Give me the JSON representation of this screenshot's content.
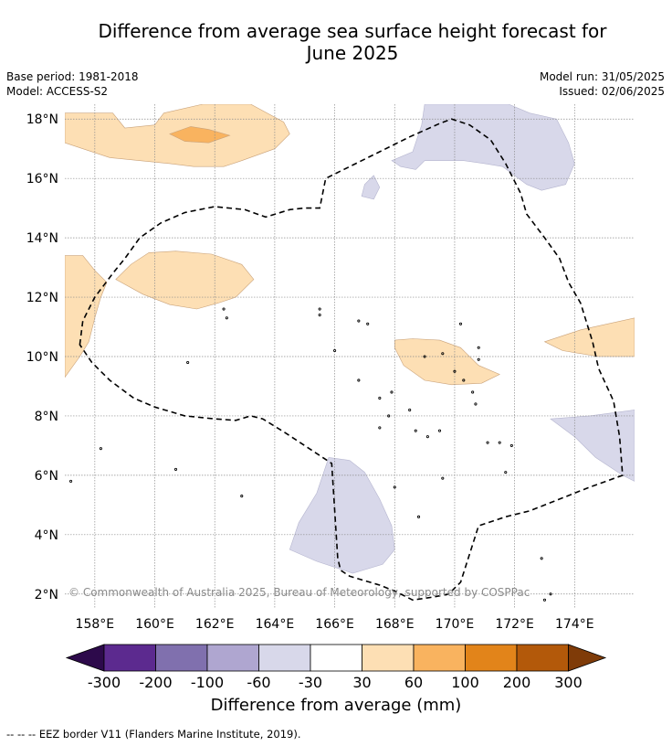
{
  "title_line1": "Difference from average sea surface height forecast for",
  "title_line2": "June 2025",
  "meta_left": {
    "base_period": "Base period: 1981-2018",
    "model": "Model: ACCESS-S2"
  },
  "meta_right": {
    "model_run": "Model run: 31/05/2025",
    "issued": "Issued: 02/06/2025"
  },
  "map": {
    "lon_range": [
      157,
      176
    ],
    "lat_range": [
      1.5,
      18.5
    ],
    "lat_ticks": [
      {
        "value": 18,
        "label": "18°N"
      },
      {
        "value": 16,
        "label": "16°N"
      },
      {
        "value": 14,
        "label": "14°N"
      },
      {
        "value": 12,
        "label": "12°N"
      },
      {
        "value": 10,
        "label": "10°N"
      },
      {
        "value": 8,
        "label": "8°N"
      },
      {
        "value": 6,
        "label": "6°N"
      },
      {
        "value": 4,
        "label": "4°N"
      },
      {
        "value": 2,
        "label": "2°N"
      }
    ],
    "lon_ticks": [
      {
        "value": 158,
        "label": "158°E"
      },
      {
        "value": 160,
        "label": "160°E"
      },
      {
        "value": 162,
        "label": "162°E"
      },
      {
        "value": 164,
        "label": "164°E"
      },
      {
        "value": 166,
        "label": "166°E"
      },
      {
        "value": 168,
        "label": "168°E"
      },
      {
        "value": 170,
        "label": "170°E"
      },
      {
        "value": 172,
        "label": "172°E"
      },
      {
        "value": 174,
        "label": "174°E"
      }
    ],
    "gridlines": true,
    "eez_border": [
      [
        157.5,
        10.4
      ],
      [
        157.6,
        11.2
      ],
      [
        158.0,
        12.0
      ],
      [
        158.6,
        12.8
      ],
      [
        159.0,
        13.3
      ],
      [
        159.5,
        14.0
      ],
      [
        160.2,
        14.5
      ],
      [
        161.0,
        14.85
      ],
      [
        162.0,
        15.05
      ],
      [
        163.0,
        14.95
      ],
      [
        163.7,
        14.7
      ],
      [
        164.5,
        14.95
      ],
      [
        165.0,
        15.0
      ],
      [
        165.5,
        15.0
      ],
      [
        165.7,
        16.0
      ],
      [
        166.5,
        16.4
      ],
      [
        167.5,
        16.9
      ],
      [
        168.5,
        17.4
      ],
      [
        169.5,
        17.85
      ],
      [
        169.9,
        18.0
      ],
      [
        170.5,
        17.8
      ],
      [
        171.2,
        17.3
      ],
      [
        171.7,
        16.5
      ],
      [
        172.2,
        15.5
      ],
      [
        172.4,
        14.8
      ],
      [
        173.0,
        14.0
      ],
      [
        173.5,
        13.3
      ],
      [
        173.8,
        12.5
      ],
      [
        174.2,
        11.8
      ],
      [
        174.6,
        10.5
      ],
      [
        174.8,
        9.6
      ],
      [
        175.3,
        8.5
      ],
      [
        175.5,
        7.3
      ],
      [
        175.6,
        6.0
      ],
      [
        174.5,
        5.6
      ],
      [
        173.5,
        5.2
      ],
      [
        172.5,
        4.8
      ],
      [
        171.7,
        4.6
      ],
      [
        170.8,
        4.3
      ],
      [
        170.2,
        2.4
      ],
      [
        169.8,
        2.0
      ],
      [
        169.3,
        1.9
      ],
      [
        168.6,
        1.8
      ],
      [
        168.0,
        2.1
      ],
      [
        167.5,
        2.3
      ],
      [
        166.5,
        2.6
      ],
      [
        166.2,
        2.8
      ],
      [
        166.1,
        3.2
      ],
      [
        165.9,
        6.4
      ],
      [
        165.3,
        6.8
      ],
      [
        164.4,
        7.4
      ],
      [
        163.6,
        7.9
      ],
      [
        163.2,
        8.0
      ],
      [
        162.7,
        7.85
      ],
      [
        162.0,
        7.9
      ],
      [
        161.0,
        8.0
      ],
      [
        160.0,
        8.3
      ],
      [
        159.3,
        8.6
      ],
      [
        158.5,
        9.2
      ],
      [
        157.9,
        9.8
      ],
      [
        157.5,
        10.4
      ]
    ],
    "islands": [
      [
        158.2,
        6.9
      ],
      [
        157.2,
        5.8
      ],
      [
        160.7,
        6.2
      ],
      [
        162.9,
        5.3
      ],
      [
        167.1,
        11.1
      ],
      [
        166.0,
        10.2
      ],
      [
        166.8,
        9.2
      ],
      [
        167.5,
        8.6
      ],
      [
        167.8,
        8.0
      ],
      [
        167.5,
        7.6
      ],
      [
        168.5,
        8.2
      ],
      [
        168.7,
        7.5
      ],
      [
        169.1,
        7.3
      ],
      [
        169.5,
        7.5
      ],
      [
        169.6,
        5.9
      ],
      [
        168.8,
        4.6
      ],
      [
        170.3,
        9.2
      ],
      [
        170.6,
        8.8
      ],
      [
        170.7,
        8.4
      ],
      [
        171.1,
        7.1
      ],
      [
        171.5,
        7.1
      ],
      [
        171.9,
        7.0
      ],
      [
        171.7,
        6.1
      ],
      [
        172.9,
        3.2
      ],
      [
        173.2,
        2.0
      ],
      [
        173.0,
        1.8
      ],
      [
        161.1,
        9.8
      ],
      [
        169.0,
        10.0
      ],
      [
        169.6,
        10.1
      ],
      [
        170.0,
        9.5
      ],
      [
        168.0,
        5.6
      ],
      [
        162.3,
        11.6
      ],
      [
        162.4,
        11.3
      ],
      [
        165.5,
        11.6
      ],
      [
        165.5,
        11.4
      ],
      [
        166.8,
        11.2
      ],
      [
        170.8,
        10.3
      ],
      [
        170.8,
        9.9
      ],
      [
        167.9,
        8.8
      ],
      [
        170.2,
        11.1
      ]
    ]
  },
  "anomaly_regions": [
    {
      "category": "30 to 60",
      "points": [
        [
          157,
          18.2
        ],
        [
          158.6,
          18.2
        ],
        [
          159.0,
          17.7
        ],
        [
          160.0,
          17.8
        ],
        [
          160.3,
          18.2
        ],
        [
          161.6,
          18.5
        ],
        [
          163.2,
          18.5
        ],
        [
          164.3,
          17.9
        ],
        [
          164.5,
          17.5
        ],
        [
          164.0,
          17.0
        ],
        [
          162.9,
          16.6
        ],
        [
          162.3,
          16.4
        ],
        [
          161.3,
          16.4
        ],
        [
          160.5,
          16.5
        ],
        [
          159.5,
          16.6
        ],
        [
          158.5,
          16.7
        ],
        [
          157.6,
          17.0
        ],
        [
          157,
          17.2
        ]
      ]
    },
    {
      "category": "60 to 100",
      "points": [
        [
          160.5,
          17.5
        ],
        [
          161.2,
          17.75
        ],
        [
          161.8,
          17.65
        ],
        [
          162.5,
          17.45
        ],
        [
          161.8,
          17.2
        ],
        [
          161.0,
          17.25
        ]
      ]
    },
    {
      "category": "30 to 60",
      "points": [
        [
          157,
          13.4
        ],
        [
          157.6,
          13.4
        ],
        [
          158.0,
          12.9
        ],
        [
          158.4,
          12.5
        ],
        [
          158.2,
          12.0
        ],
        [
          158.0,
          11.3
        ],
        [
          157.8,
          10.5
        ],
        [
          157.5,
          10.0
        ],
        [
          157,
          9.3
        ]
      ]
    },
    {
      "category": "30 to 60",
      "points": [
        [
          158.7,
          12.6
        ],
        [
          159.2,
          13.1
        ],
        [
          159.8,
          13.5
        ],
        [
          160.7,
          13.55
        ],
        [
          161.9,
          13.45
        ],
        [
          162.9,
          13.1
        ],
        [
          163.3,
          12.6
        ],
        [
          162.7,
          12.0
        ],
        [
          162.1,
          11.8
        ],
        [
          161.4,
          11.6
        ],
        [
          160.5,
          11.75
        ],
        [
          159.6,
          12.1
        ]
      ]
    },
    {
      "category": "30 to 60",
      "points": [
        [
          168.0,
          10.55
        ],
        [
          168.6,
          10.6
        ],
        [
          169.5,
          10.55
        ],
        [
          170.2,
          10.3
        ],
        [
          170.8,
          9.7
        ],
        [
          171.5,
          9.4
        ],
        [
          170.9,
          9.1
        ],
        [
          169.9,
          9.05
        ],
        [
          169.0,
          9.2
        ],
        [
          168.3,
          9.7
        ],
        [
          168.0,
          10.3
        ]
      ]
    },
    {
      "category": "30 to 60",
      "points": [
        [
          173.0,
          10.5
        ],
        [
          174.2,
          10.9
        ],
        [
          176,
          11.3
        ],
        [
          176,
          10.0
        ],
        [
          174.8,
          10.0
        ],
        [
          173.6,
          10.2
        ]
      ]
    },
    {
      "category": "-60 to -30",
      "points": [
        [
          169.0,
          18.5
        ],
        [
          171.8,
          18.5
        ],
        [
          172.5,
          18.2
        ],
        [
          173.4,
          18.0
        ],
        [
          173.8,
          17.2
        ],
        [
          174.0,
          16.5
        ],
        [
          173.7,
          15.8
        ],
        [
          172.9,
          15.6
        ],
        [
          172.4,
          15.8
        ],
        [
          171.6,
          16.4
        ],
        [
          171.0,
          16.5
        ],
        [
          170.3,
          16.6
        ],
        [
          169.0,
          16.6
        ],
        [
          168.7,
          16.3
        ],
        [
          168.2,
          16.4
        ],
        [
          167.9,
          16.6
        ],
        [
          168.6,
          16.9
        ],
        [
          168.9,
          17.8
        ]
      ]
    },
    {
      "category": "-60 to -30",
      "points": [
        [
          167.0,
          15.8
        ],
        [
          167.3,
          16.1
        ],
        [
          167.5,
          15.7
        ],
        [
          167.3,
          15.3
        ],
        [
          166.9,
          15.4
        ]
      ]
    },
    {
      "category": "-60 to -30",
      "points": [
        [
          165.8,
          6.6
        ],
        [
          166.5,
          6.5
        ],
        [
          167.0,
          6.1
        ],
        [
          167.5,
          5.2
        ],
        [
          167.9,
          4.3
        ],
        [
          168.0,
          3.5
        ],
        [
          167.6,
          3.0
        ],
        [
          166.6,
          2.7
        ],
        [
          165.4,
          3.1
        ],
        [
          164.5,
          3.5
        ],
        [
          164.8,
          4.4
        ],
        [
          165.4,
          5.4
        ]
      ]
    },
    {
      "category": "-60 to -30",
      "points": [
        [
          173.2,
          7.9
        ],
        [
          174.5,
          8.0
        ],
        [
          176,
          8.2
        ],
        [
          176,
          5.8
        ],
        [
          175.6,
          6.0
        ],
        [
          174.7,
          6.6
        ],
        [
          174.0,
          7.3
        ]
      ]
    }
  ],
  "colorbar": {
    "bins": [
      {
        "range": "-300 to -200",
        "color": "#5c2a8f"
      },
      {
        "range": "-200 to -100",
        "color": "#8070ae"
      },
      {
        "range": "-100 to -60",
        "color": "#afa6d0"
      },
      {
        "range": "-60 to -30",
        "color": "#d8d8ea"
      },
      {
        "range": "-30 to 30",
        "color": "#ffffff"
      },
      {
        "range": "30 to 60",
        "color": "#fddfb4"
      },
      {
        "range": "60 to 100",
        "color": "#f9b35f"
      },
      {
        "range": "100 to 200",
        "color": "#e2841a"
      },
      {
        "range": "200 to 300",
        "color": "#b3590a"
      }
    ],
    "below_color": "#2d0a4b",
    "above_color": "#7f3b08",
    "tick_labels": [
      "-300",
      "-200",
      "-100",
      "-60",
      "-30",
      "30",
      "60",
      "100",
      "200",
      "300"
    ],
    "label": "Difference from average (mm)"
  },
  "category_colors": {
    "-60 to -30": "#d8d8ea",
    "30 to 60": "#fddfb4",
    "60 to 100": "#f9b35f"
  },
  "copyright": "© Commonwealth of Australia 2025, Bureau of Meteorology, supported by COSPPac",
  "footer": "--  --  -- EEZ border V11 (Flanders Marine Institute, 2019)."
}
